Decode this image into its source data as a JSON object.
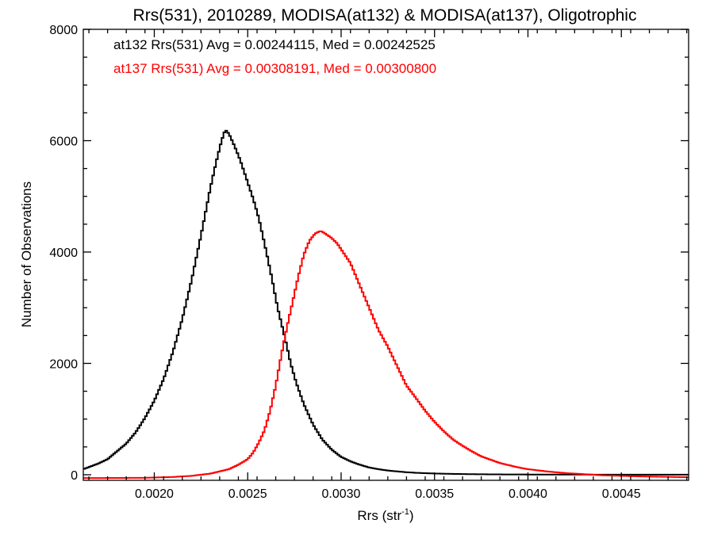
{
  "chart_data": {
    "type": "line",
    "title": "Rrs(531), 2010289, MODISA(at132) & MODISA(at137), Oligotrophic",
    "xlabel": "Rrs (str",
    "xlabel_sup": "-1",
    "xlabel_close": ")",
    "ylabel": "Number of Observations",
    "xlim": [
      0.00162,
      0.00486
    ],
    "ylim": [
      -100,
      8000
    ],
    "x_ticks": [
      0.002,
      0.0025,
      0.003,
      0.0035,
      0.004,
      0.0045
    ],
    "x_tick_labels": [
      "0.0020",
      "0.0025",
      "0.0030",
      "0.0035",
      "0.0040",
      "0.0045"
    ],
    "y_ticks": [
      0,
      2000,
      4000,
      6000,
      8000
    ],
    "y_tick_labels": [
      "0",
      "2000",
      "4000",
      "6000",
      "8000"
    ],
    "bin_width": 1e-05,
    "annotations": [
      "at132 Rrs(531) Avg = 0.00244115, Med = 0.00242525",
      "at137 Rrs(531) Avg = 0.00308191, Med = 0.00300800"
    ],
    "series": [
      {
        "color": "#000000",
        "points": [
          [
            0.00162,
            100
          ],
          [
            0.0017,
            200
          ],
          [
            0.00175,
            280
          ],
          [
            0.0018,
            420
          ],
          [
            0.00185,
            560
          ],
          [
            0.0019,
            760
          ],
          [
            0.00195,
            1020
          ],
          [
            0.002,
            1330
          ],
          [
            0.00205,
            1720
          ],
          [
            0.0021,
            2210
          ],
          [
            0.00215,
            2800
          ],
          [
            0.0022,
            3500
          ],
          [
            0.00225,
            4300
          ],
          [
            0.0023,
            5150
          ],
          [
            0.00233,
            5600
          ],
          [
            0.00236,
            6000
          ],
          [
            0.00238,
            6200
          ],
          [
            0.0024,
            6120
          ],
          [
            0.00243,
            5900
          ],
          [
            0.00246,
            5650
          ],
          [
            0.0025,
            5250
          ],
          [
            0.00253,
            4950
          ],
          [
            0.00256,
            4600
          ],
          [
            0.0026,
            4000
          ],
          [
            0.00263,
            3520
          ],
          [
            0.00266,
            3000
          ],
          [
            0.0027,
            2450
          ],
          [
            0.00273,
            2000
          ],
          [
            0.00276,
            1650
          ],
          [
            0.0028,
            1270
          ],
          [
            0.00285,
            900
          ],
          [
            0.0029,
            630
          ],
          [
            0.00295,
            450
          ],
          [
            0.003,
            320
          ],
          [
            0.00305,
            240
          ],
          [
            0.0031,
            180
          ],
          [
            0.00315,
            130
          ],
          [
            0.0032,
            100
          ],
          [
            0.00325,
            75
          ],
          [
            0.0033,
            60
          ],
          [
            0.00335,
            45
          ],
          [
            0.0034,
            35
          ],
          [
            0.00345,
            28
          ],
          [
            0.0035,
            22
          ],
          [
            0.0036,
            15
          ],
          [
            0.0037,
            10
          ],
          [
            0.0038,
            7
          ],
          [
            0.0039,
            5
          ],
          [
            0.004,
            4
          ],
          [
            0.0042,
            3
          ],
          [
            0.0044,
            2
          ],
          [
            0.00486,
            1
          ]
        ]
      },
      {
        "color": "#ff0000",
        "points": [
          [
            0.00162,
            -60
          ],
          [
            0.00195,
            -55
          ],
          [
            0.0021,
            -40
          ],
          [
            0.0022,
            -20
          ],
          [
            0.0023,
            20
          ],
          [
            0.0024,
            100
          ],
          [
            0.00245,
            180
          ],
          [
            0.0025,
            280
          ],
          [
            0.00253,
            400
          ],
          [
            0.00256,
            580
          ],
          [
            0.00259,
            800
          ],
          [
            0.00262,
            1150
          ],
          [
            0.00265,
            1600
          ],
          [
            0.00268,
            2150
          ],
          [
            0.00271,
            2650
          ],
          [
            0.00274,
            3100
          ],
          [
            0.00277,
            3550
          ],
          [
            0.0028,
            3950
          ],
          [
            0.00283,
            4200
          ],
          [
            0.00286,
            4330
          ],
          [
            0.00289,
            4380
          ],
          [
            0.00292,
            4320
          ],
          [
            0.00295,
            4250
          ],
          [
            0.00298,
            4150
          ],
          [
            0.00301,
            4000
          ],
          [
            0.00305,
            3800
          ],
          [
            0.0031,
            3400
          ],
          [
            0.00315,
            3000
          ],
          [
            0.0032,
            2600
          ],
          [
            0.00325,
            2300
          ],
          [
            0.0033,
            1950
          ],
          [
            0.00335,
            1600
          ],
          [
            0.0034,
            1380
          ],
          [
            0.00345,
            1150
          ],
          [
            0.0035,
            950
          ],
          [
            0.00355,
            780
          ],
          [
            0.0036,
            630
          ],
          [
            0.00365,
            520
          ],
          [
            0.0037,
            420
          ],
          [
            0.00375,
            330
          ],
          [
            0.0038,
            270
          ],
          [
            0.00385,
            210
          ],
          [
            0.0039,
            170
          ],
          [
            0.00395,
            130
          ],
          [
            0.004,
            100
          ],
          [
            0.0041,
            60
          ],
          [
            0.0042,
            30
          ],
          [
            0.0043,
            10
          ],
          [
            0.0044,
            -10
          ],
          [
            0.0046,
            -30
          ],
          [
            0.00486,
            -45
          ]
        ]
      }
    ]
  }
}
